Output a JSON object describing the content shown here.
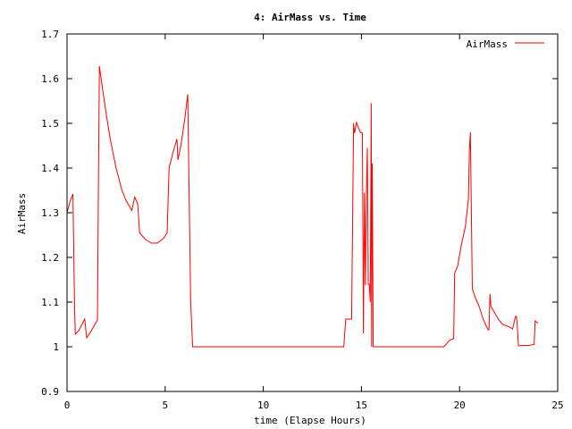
{
  "chart_data": {
    "type": "line",
    "title": "4: AirMass vs. Time",
    "xlabel": "time (Elapse Hours)",
    "ylabel": "AirMass",
    "xlim": [
      0,
      25
    ],
    "ylim": [
      0.9,
      1.7
    ],
    "xticks": [
      0,
      5,
      10,
      15,
      20,
      25
    ],
    "yticks": [
      0.9,
      1,
      1.1,
      1.2,
      1.3,
      1.4,
      1.5,
      1.6,
      1.7
    ],
    "xtick_labels": [
      "0",
      "5",
      "10",
      "15",
      "20",
      "25"
    ],
    "ytick_labels": [
      "0.9",
      "1",
      "1.1",
      "1.2",
      "1.3",
      "1.4",
      "1.5",
      "1.6",
      "1.7"
    ],
    "grid": false,
    "legend_position": "top-right",
    "series": [
      {
        "name": "AirMass",
        "color": "#ff0000",
        "points": [
          [
            0.0,
            1.3
          ],
          [
            0.15,
            1.325
          ],
          [
            0.3,
            1.342
          ],
          [
            0.38,
            1.1
          ],
          [
            0.42,
            1.028
          ],
          [
            0.6,
            1.036
          ],
          [
            0.9,
            1.062
          ],
          [
            1.0,
            1.02
          ],
          [
            1.2,
            1.033
          ],
          [
            1.55,
            1.06
          ],
          [
            1.6,
            1.37
          ],
          [
            1.65,
            1.628
          ],
          [
            1.8,
            1.58
          ],
          [
            2.0,
            1.52
          ],
          [
            2.2,
            1.465
          ],
          [
            2.5,
            1.4
          ],
          [
            2.8,
            1.35
          ],
          [
            3.0,
            1.328
          ],
          [
            3.3,
            1.305
          ],
          [
            3.45,
            1.335
          ],
          [
            3.6,
            1.32
          ],
          [
            3.7,
            1.255
          ],
          [
            4.0,
            1.24
          ],
          [
            4.3,
            1.232
          ],
          [
            4.6,
            1.232
          ],
          [
            4.9,
            1.242
          ],
          [
            5.1,
            1.255
          ],
          [
            5.2,
            1.4
          ],
          [
            5.4,
            1.435
          ],
          [
            5.6,
            1.465
          ],
          [
            5.65,
            1.418
          ],
          [
            5.8,
            1.45
          ],
          [
            6.0,
            1.51
          ],
          [
            6.15,
            1.565
          ],
          [
            6.3,
            1.1
          ],
          [
            6.4,
            1.0
          ],
          [
            7.0,
            1.0
          ],
          [
            9.0,
            1.0
          ],
          [
            11.0,
            1.0
          ],
          [
            13.0,
            1.0
          ],
          [
            14.1,
            1.0
          ],
          [
            14.2,
            1.062
          ],
          [
            14.5,
            1.062
          ],
          [
            14.6,
            1.5
          ],
          [
            14.65,
            1.478
          ],
          [
            14.75,
            1.502
          ],
          [
            14.85,
            1.49
          ],
          [
            14.95,
            1.48
          ],
          [
            15.05,
            1.478
          ],
          [
            15.1,
            1.03
          ],
          [
            15.15,
            1.345
          ],
          [
            15.2,
            1.138
          ],
          [
            15.25,
            1.335
          ],
          [
            15.3,
            1.445
          ],
          [
            15.35,
            1.14
          ],
          [
            15.4,
            1.14
          ],
          [
            15.45,
            1.1
          ],
          [
            15.5,
            1.545
          ],
          [
            15.52,
            1.0
          ],
          [
            15.55,
            1.41
          ],
          [
            15.6,
            1.0
          ],
          [
            16.0,
            1.0
          ],
          [
            18.0,
            1.0
          ],
          [
            19.2,
            1.0
          ],
          [
            19.5,
            1.015
          ],
          [
            19.7,
            1.018
          ],
          [
            19.75,
            1.165
          ],
          [
            19.9,
            1.18
          ],
          [
            20.1,
            1.23
          ],
          [
            20.3,
            1.27
          ],
          [
            20.45,
            1.33
          ],
          [
            20.5,
            1.44
          ],
          [
            20.55,
            1.48
          ],
          [
            20.65,
            1.13
          ],
          [
            20.8,
            1.11
          ],
          [
            21.0,
            1.09
          ],
          [
            21.2,
            1.062
          ],
          [
            21.45,
            1.038
          ],
          [
            21.5,
            1.038
          ],
          [
            21.55,
            1.118
          ],
          [
            21.6,
            1.09
          ],
          [
            21.8,
            1.075
          ],
          [
            22.0,
            1.06
          ],
          [
            22.2,
            1.05
          ],
          [
            22.5,
            1.045
          ],
          [
            22.7,
            1.04
          ],
          [
            22.85,
            1.068
          ],
          [
            22.9,
            1.068
          ],
          [
            22.95,
            1.04
          ],
          [
            23.0,
            1.002
          ],
          [
            23.2,
            1.003
          ],
          [
            23.5,
            1.003
          ],
          [
            23.8,
            1.005
          ],
          [
            23.85,
            1.058
          ],
          [
            24.0,
            1.053
          ]
        ]
      }
    ]
  }
}
